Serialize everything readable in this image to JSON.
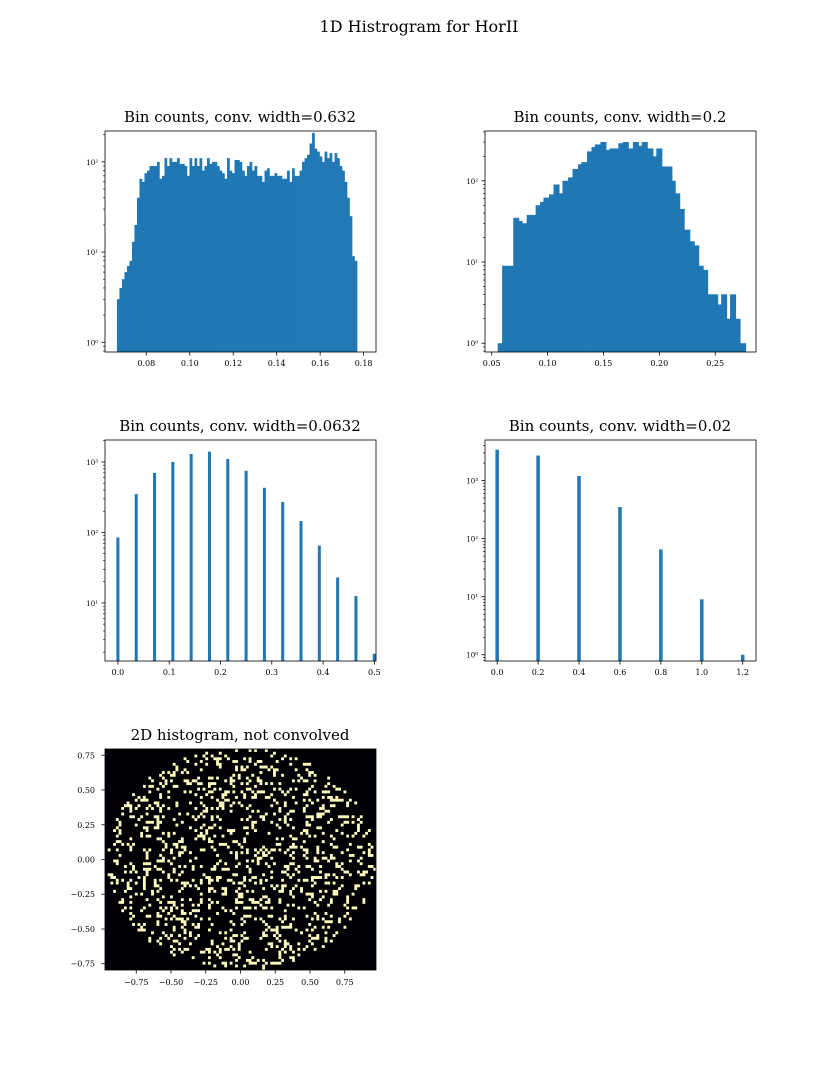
{
  "figure": {
    "suptitle": "1D Histrogram for HorII"
  },
  "colors": {
    "bar": "#1f77b4",
    "heatmap_bg": "#000004",
    "heatmap_hit": "#fcfdbf",
    "axis": "#000000"
  },
  "chart_data": [
    {
      "type": "bar",
      "title": "Bin counts, conv. width=0.632",
      "yscale": "log",
      "xlim": [
        0.061,
        0.1857
      ],
      "ylim": [
        0.78,
        220
      ],
      "xticks": [
        0.08,
        0.1,
        0.12,
        0.14,
        0.16,
        0.18
      ],
      "xtick_labels": [
        "0.08",
        "0.10",
        "0.12",
        "0.14",
        "0.16",
        "0.18"
      ],
      "ytick_labels": [
        "10⁰",
        "10¹",
        "10²"
      ],
      "bin_start": 0.0665,
      "bin_width": 0.001151,
      "values": [
        3,
        4,
        5,
        6,
        7,
        8,
        13,
        20,
        40,
        65,
        60,
        75,
        80,
        90,
        90,
        90,
        100,
        65,
        70,
        110,
        90,
        110,
        100,
        100,
        110,
        95,
        95,
        90,
        70,
        110,
        90,
        110,
        90,
        110,
        80,
        90,
        110,
        95,
        100,
        100,
        90,
        80,
        75,
        65,
        110,
        80,
        75,
        105,
        105,
        100,
        80,
        70,
        90,
        100,
        80,
        90,
        70,
        70,
        60,
        80,
        85,
        70,
        70,
        75,
        70,
        70,
        65,
        65,
        80,
        60,
        85,
        70,
        70,
        80,
        100,
        110,
        120,
        160,
        210,
        140,
        130,
        115,
        100,
        130,
        110,
        125,
        100,
        125,
        110,
        90,
        80,
        60,
        40,
        25,
        9,
        8
      ]
    },
    {
      "type": "bar",
      "title": "Bin counts, conv. width=0.2",
      "yscale": "log",
      "xlim": [
        0.044,
        0.2865
      ],
      "ylim": [
        0.78,
        410
      ],
      "xticks": [
        0.05,
        0.1,
        0.15,
        0.2,
        0.25
      ],
      "xtick_labels": [
        "0.05",
        "0.10",
        "0.15",
        "0.20",
        "0.25"
      ],
      "ytick_labels": [
        "10⁰",
        "10¹",
        "10²"
      ],
      "bars": [
        [
          0.058,
          1
        ],
        [
          0.062,
          9
        ],
        [
          0.067,
          9
        ],
        [
          0.072,
          35
        ],
        [
          0.075,
          32
        ],
        [
          0.079,
          30
        ],
        [
          0.084,
          38
        ],
        [
          0.089,
          38
        ],
        [
          0.092,
          50
        ],
        [
          0.096,
          55
        ],
        [
          0.099,
          62
        ],
        [
          0.104,
          68
        ],
        [
          0.108,
          90
        ],
        [
          0.112,
          70
        ],
        [
          0.116,
          100
        ],
        [
          0.121,
          110
        ],
        [
          0.125,
          140
        ],
        [
          0.13,
          160
        ],
        [
          0.133,
          170
        ],
        [
          0.138,
          230
        ],
        [
          0.142,
          260
        ],
        [
          0.145,
          280
        ],
        [
          0.15,
          300
        ],
        [
          0.155,
          240
        ],
        [
          0.158,
          250
        ],
        [
          0.162,
          250
        ],
        [
          0.166,
          290
        ],
        [
          0.17,
          300
        ],
        [
          0.174,
          250
        ],
        [
          0.179,
          300
        ],
        [
          0.183,
          270
        ],
        [
          0.187,
          300
        ],
        [
          0.192,
          250
        ],
        [
          0.195,
          200
        ],
        [
          0.2,
          250
        ],
        [
          0.204,
          150
        ],
        [
          0.209,
          150
        ],
        [
          0.212,
          100
        ],
        [
          0.216,
          70
        ],
        [
          0.22,
          45
        ],
        [
          0.225,
          25
        ],
        [
          0.229,
          18
        ],
        [
          0.233,
          16
        ],
        [
          0.237,
          9
        ],
        [
          0.241,
          8
        ],
        [
          0.246,
          4
        ],
        [
          0.25,
          4
        ],
        [
          0.254,
          3
        ],
        [
          0.258,
          4
        ],
        [
          0.262,
          2
        ],
        [
          0.266,
          4
        ],
        [
          0.27,
          2
        ],
        [
          0.275,
          1
        ]
      ]
    },
    {
      "type": "bar",
      "title": "Bin counts, conv. width=0.0632",
      "yscale": "log",
      "xlim": [
        -0.0252,
        0.5032
      ],
      "ylim": [
        1.5,
        2050
      ],
      "xticks": [
        0.0,
        0.1,
        0.2,
        0.3,
        0.4,
        0.5
      ],
      "xtick_labels": [
        "0.0",
        "0.1",
        "0.2",
        "0.3",
        "0.4",
        "0.5"
      ],
      "ytick_labels": [
        "10¹",
        "10²",
        "10³"
      ],
      "bars": [
        [
          0.0,
          85
        ],
        [
          0.0357,
          350
        ],
        [
          0.0714,
          700
        ],
        [
          0.1071,
          1000
        ],
        [
          0.1428,
          1300
        ],
        [
          0.1785,
          1400
        ],
        [
          0.2142,
          1100
        ],
        [
          0.2499,
          750
        ],
        [
          0.2856,
          430
        ],
        [
          0.3213,
          270
        ],
        [
          0.357,
          145
        ],
        [
          0.3927,
          65
        ],
        [
          0.4284,
          23
        ],
        [
          0.4641,
          12.5
        ],
        [
          0.4998,
          1.9
        ]
      ]
    },
    {
      "type": "bar",
      "title": "Bin counts, conv. width=0.02",
      "yscale": "log",
      "xlim": [
        -0.0595,
        1.2649
      ],
      "ylim": [
        0.78,
        5000
      ],
      "xticks": [
        0.0,
        0.2,
        0.4,
        0.6,
        0.8,
        1.0,
        1.2
      ],
      "xtick_labels": [
        "0.0",
        "0.2",
        "0.4",
        "0.6",
        "0.8",
        "1.0",
        "1.2"
      ],
      "ytick_labels": [
        "10⁰",
        "10¹",
        "10²",
        "10³"
      ],
      "bars": [
        [
          0.0,
          3400
        ],
        [
          0.2,
          2700
        ],
        [
          0.4,
          1200
        ],
        [
          0.6,
          350
        ],
        [
          0.8,
          65
        ],
        [
          1.0,
          9
        ],
        [
          1.2,
          1
        ]
      ]
    },
    {
      "type": "heatmap",
      "title": "2D histogram, not convolved",
      "xlim": [
        -0.975,
        0.975
      ],
      "ylim": [
        -0.795,
        0.795
      ],
      "xticks": [
        -0.75,
        -0.5,
        -0.25,
        0.0,
        0.25,
        0.5,
        0.75
      ],
      "xtick_labels": [
        "−0.75",
        "−0.50",
        "−0.25",
        "0.00",
        "0.25",
        "0.50",
        "0.75"
      ],
      "yticks": [
        0.75,
        0.5,
        0.25,
        0.0,
        -0.25,
        -0.5,
        -0.75
      ],
      "ytick_labels": [
        "0.75",
        "0.50",
        "0.25",
        "0.00",
        "−0.25",
        "−0.50",
        "−0.75"
      ],
      "grid": [
        100,
        80
      ],
      "fill_fraction": 0.18
    }
  ]
}
